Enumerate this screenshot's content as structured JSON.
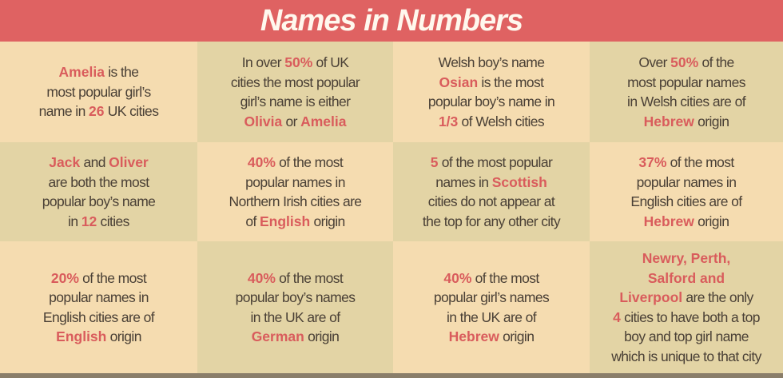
{
  "header": {
    "title": "Names in Numbers"
  },
  "colors": {
    "header": "#df6262",
    "highlight": "#d95c5c",
    "cell_light": "#f5dcb0",
    "cell_dark": "#e3d4a5",
    "text": "#4a4036"
  },
  "cells": [
    {
      "lines": [
        [
          {
            "t": "Amelia",
            "h": true
          },
          {
            "t": " is the"
          }
        ],
        [
          {
            "t": "most popular girl’s"
          }
        ],
        [
          {
            "t": "name in "
          },
          {
            "t": "26",
            "h": true
          },
          {
            "t": " UK cities"
          }
        ]
      ]
    },
    {
      "lines": [
        [
          {
            "t": "In over "
          },
          {
            "t": "50%",
            "h": true
          },
          {
            "t": " of UK"
          }
        ],
        [
          {
            "t": "cities the most popular"
          }
        ],
        [
          {
            "t": "girl’s name is either"
          }
        ],
        [
          {
            "t": "Olivia",
            "h": true
          },
          {
            "t": " or "
          },
          {
            "t": "Amelia",
            "h": true
          }
        ]
      ]
    },
    {
      "lines": [
        [
          {
            "t": "Welsh boy’s name"
          }
        ],
        [
          {
            "t": "Osian",
            "h": true
          },
          {
            "t": " is the most"
          }
        ],
        [
          {
            "t": "popular boy’s name in"
          }
        ],
        [
          {
            "t": "1/3",
            "h": true
          },
          {
            "t": " of Welsh cities"
          }
        ]
      ]
    },
    {
      "lines": [
        [
          {
            "t": "Over "
          },
          {
            "t": "50%",
            "h": true
          },
          {
            "t": " of the"
          }
        ],
        [
          {
            "t": "most popular names"
          }
        ],
        [
          {
            "t": "in Welsh cities are of"
          }
        ],
        [
          {
            "t": "Hebrew",
            "h": true
          },
          {
            "t": " origin"
          }
        ]
      ]
    },
    {
      "lines": [
        [
          {
            "t": "Jack",
            "h": true
          },
          {
            "t": " and "
          },
          {
            "t": "Oliver",
            "h": true
          }
        ],
        [
          {
            "t": "are both the most"
          }
        ],
        [
          {
            "t": "popular boy’s name"
          }
        ],
        [
          {
            "t": "in "
          },
          {
            "t": "12",
            "h": true
          },
          {
            "t": " cities"
          }
        ]
      ]
    },
    {
      "lines": [
        [
          {
            "t": "40%",
            "h": true
          },
          {
            "t": " of the most"
          }
        ],
        [
          {
            "t": "popular names in"
          }
        ],
        [
          {
            "t": "Northern Irish cities are"
          }
        ],
        [
          {
            "t": "of "
          },
          {
            "t": "English",
            "h": true
          },
          {
            "t": " origin"
          }
        ]
      ]
    },
    {
      "lines": [
        [
          {
            "t": "5",
            "h": true
          },
          {
            "t": " of the most popular"
          }
        ],
        [
          {
            "t": "names in "
          },
          {
            "t": "Scottish",
            "h": true
          }
        ],
        [
          {
            "t": "cities do not appear at"
          }
        ],
        [
          {
            "t": "the top for any other city"
          }
        ]
      ]
    },
    {
      "lines": [
        [
          {
            "t": "37%",
            "h": true
          },
          {
            "t": " of the most"
          }
        ],
        [
          {
            "t": "popular names in"
          }
        ],
        [
          {
            "t": "English cities are of"
          }
        ],
        [
          {
            "t": "Hebrew",
            "h": true
          },
          {
            "t": " origin"
          }
        ]
      ]
    },
    {
      "lines": [
        [
          {
            "t": "20%",
            "h": true
          },
          {
            "t": " of the most"
          }
        ],
        [
          {
            "t": "popular names in"
          }
        ],
        [
          {
            "t": "English cities are of"
          }
        ],
        [
          {
            "t": "English",
            "h": true
          },
          {
            "t": " origin"
          }
        ]
      ]
    },
    {
      "lines": [
        [
          {
            "t": "40%",
            "h": true
          },
          {
            "t": " of the most"
          }
        ],
        [
          {
            "t": "popular boy’s names"
          }
        ],
        [
          {
            "t": "in the UK are of"
          }
        ],
        [
          {
            "t": "German",
            "h": true
          },
          {
            "t": " origin"
          }
        ]
      ]
    },
    {
      "lines": [
        [
          {
            "t": "40%",
            "h": true
          },
          {
            "t": " of the most"
          }
        ],
        [
          {
            "t": "popular girl’s names"
          }
        ],
        [
          {
            "t": "in the UK are of"
          }
        ],
        [
          {
            "t": "Hebrew",
            "h": true
          },
          {
            "t": " origin"
          }
        ]
      ]
    },
    {
      "lines": [
        [
          {
            "t": "Newry, Perth,",
            "h": true
          }
        ],
        [
          {
            "t": "Salford and",
            "h": true
          }
        ],
        [
          {
            "t": "Liverpool",
            "h": true
          },
          {
            "t": " are the only"
          }
        ],
        [
          {
            "t": "4",
            "h": true
          },
          {
            "t": " cities to have both a top"
          }
        ],
        [
          {
            "t": "boy and top girl name"
          }
        ],
        [
          {
            "t": "which is unique to that city"
          }
        ]
      ]
    }
  ]
}
